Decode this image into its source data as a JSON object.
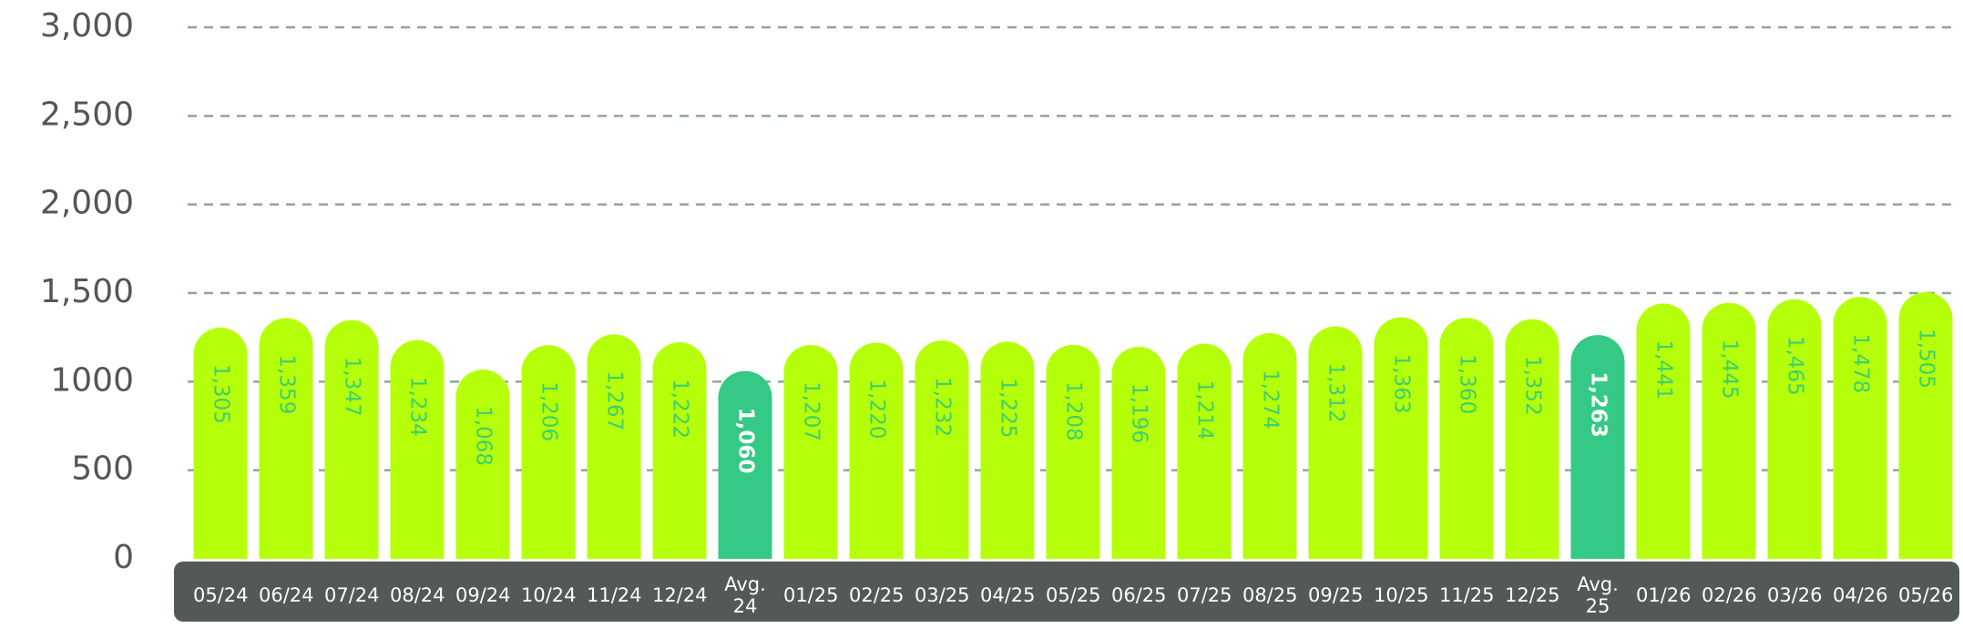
{
  "chart_data": {
    "type": "bar",
    "categories": [
      "05/24",
      "06/24",
      "07/24",
      "08/24",
      "09/24",
      "10/24",
      "11/24",
      "12/24",
      "Avg. 24",
      "01/25",
      "02/25",
      "03/25",
      "04/25",
      "05/25",
      "06/25",
      "07/25",
      "08/25",
      "09/25",
      "10/25",
      "11/25",
      "12/25",
      "Avg. 25",
      "01/26",
      "02/26",
      "03/26",
      "04/26",
      "05/26"
    ],
    "values": [
      1305,
      1359,
      1347,
      1234,
      1068,
      1206,
      1267,
      1222,
      1060,
      1207,
      1220,
      1232,
      1225,
      1208,
      1196,
      1214,
      1274,
      1312,
      1363,
      1360,
      1352,
      1263,
      1441,
      1445,
      1465,
      1478,
      1505
    ],
    "value_labels": [
      "1,305",
      "1,359",
      "1,347",
      "1,234",
      "1,068",
      "1,206",
      "1,267",
      "1,222",
      "1,060",
      "1,207",
      "1,220",
      "1,232",
      "1,225",
      "1,208",
      "1,196",
      "1,214",
      "1,274",
      "1,312",
      "1,363",
      "1,360",
      "1,352",
      "1,263",
      "1,441",
      "1,445",
      "1,465",
      "1,478",
      "1,505"
    ],
    "colors": [
      "#b6ff0a",
      "#b6ff0a",
      "#b6ff0a",
      "#b6ff0a",
      "#b6ff0a",
      "#b6ff0a",
      "#b6ff0a",
      "#b6ff0a",
      "#34c985",
      "#b6ff0a",
      "#b6ff0a",
      "#b6ff0a",
      "#b6ff0a",
      "#b6ff0a",
      "#b6ff0a",
      "#b6ff0a",
      "#b6ff0a",
      "#b6ff0a",
      "#b6ff0a",
      "#b6ff0a",
      "#b6ff0a",
      "#34c985",
      "#b6ff0a",
      "#b6ff0a",
      "#b6ff0a",
      "#b6ff0a",
      "#b6ff0a"
    ],
    "value_label_colors": [
      "#3ccf6e",
      "#3ccf6e",
      "#3ccf6e",
      "#3ccf6e",
      "#3ccf6e",
      "#3ccf6e",
      "#3ccf6e",
      "#3ccf6e",
      "#ffffff",
      "#3ccf6e",
      "#3ccf6e",
      "#3ccf6e",
      "#3ccf6e",
      "#3ccf6e",
      "#3ccf6e",
      "#3ccf6e",
      "#3ccf6e",
      "#3ccf6e",
      "#3ccf6e",
      "#3ccf6e",
      "#3ccf6e",
      "#ffffff",
      "#3ccf6e",
      "#3ccf6e",
      "#3ccf6e",
      "#3ccf6e",
      "#3ccf6e"
    ],
    "ylim": [
      0,
      3000
    ],
    "yticks": [
      0,
      500,
      1000,
      {
        "value": 1500,
        "label": "1,500"
      },
      {
        "value": 2000,
        "label": "2,000"
      },
      {
        "value": 2500,
        "label": "2,500"
      },
      {
        "value": 3000,
        "label": "3,000"
      }
    ],
    "grid": true
  }
}
